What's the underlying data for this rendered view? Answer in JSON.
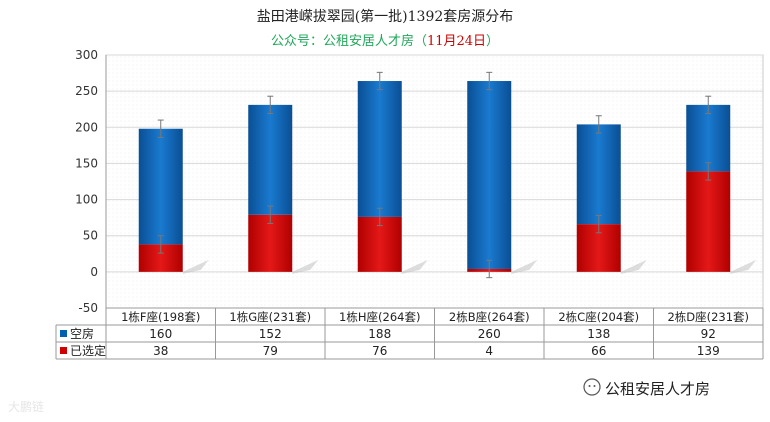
{
  "title_line1": "盐田港嵘拔翠园(第一批)1392套房源分布",
  "title_line2_prefix": "公众号：公租安居人才房（",
  "title_line2_date": "11月24日",
  "title_line2_suffix": "）",
  "watermark": "公租安居人才房",
  "watermark_left": "大鹏链",
  "colors": {
    "series_empty": "#0060b0",
    "series_selected": "#d00000",
    "grid": "#d8d8d8"
  },
  "chart_data": {
    "type": "bar",
    "stacked": true,
    "categories": [
      "1栋F座(198套)",
      "1栋G座(231套)",
      "1栋H座(264套)",
      "2栋B座(264套)",
      "2栋C座(204套)",
      "2栋D座(231套)"
    ],
    "series": [
      {
        "name": "已选定",
        "values": [
          38,
          79,
          76,
          4,
          66,
          139
        ]
      },
      {
        "name": "空房",
        "values": [
          160,
          152,
          188,
          260,
          138,
          92
        ]
      }
    ],
    "error_bars": true,
    "ylim": [
      -50,
      300
    ],
    "yticks": [
      -50,
      0,
      50,
      100,
      150,
      200,
      250,
      300
    ],
    "grid": true,
    "legend": "data-table-left"
  }
}
